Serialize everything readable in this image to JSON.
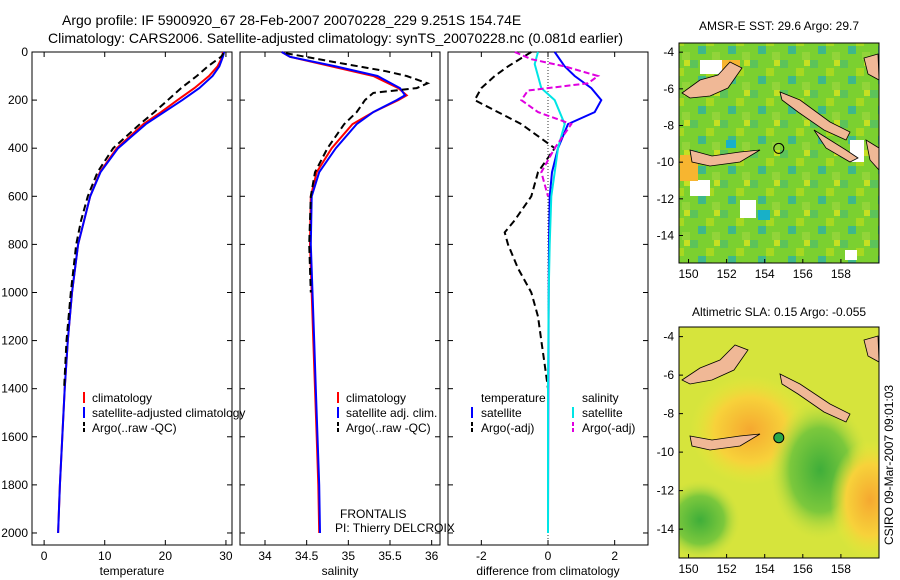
{
  "header": {
    "line1": "Argo profile: IF 5900920_67 28-Feb-2007 20070228_229 9.251S 154.74E",
    "line2": "Climatology: CARS2006. Satellite-adjusted climatology: synTS_20070228.nc (0.081d earlier)"
  },
  "colors": {
    "climatology": "#ff0000",
    "satellite": "#0000ff",
    "argo": "#000000",
    "sat_salinity": "#00e5e5",
    "argo_salinity": "#e000e0",
    "land": "#f0b896"
  },
  "chart_data": [
    {
      "type": "line",
      "id": "temperature-profile",
      "xlabel": "temperature",
      "ylabel": "",
      "xlim": [
        -2,
        31
      ],
      "ylim": [
        2050,
        0
      ],
      "xticks": [
        0,
        10,
        20,
        30
      ],
      "yticks": [
        0,
        200,
        400,
        600,
        800,
        1000,
        1200,
        1400,
        1600,
        1800,
        2000
      ],
      "series": [
        {
          "name": "climatology",
          "color": "#ff0000",
          "dash": "none",
          "depth": [
            0,
            20,
            60,
            100,
            150,
            200,
            250,
            300,
            400,
            500,
            600,
            800,
            1000,
            1200,
            1400,
            1600,
            1800,
            2000
          ],
          "values": [
            29.5,
            29.4,
            28.6,
            27.2,
            24.8,
            22.0,
            19.3,
            16.4,
            12.0,
            9.2,
            7.6,
            5.6,
            4.6,
            3.9,
            3.4,
            3.0,
            2.6,
            2.3
          ]
        },
        {
          "name": "satellite-adjusted climatology",
          "color": "#0000ff",
          "dash": "none",
          "depth": [
            0,
            20,
            60,
            100,
            150,
            200,
            250,
            300,
            400,
            500,
            600,
            800,
            1000,
            1200,
            1400,
            1600,
            1800,
            2000
          ],
          "values": [
            29.7,
            29.5,
            28.9,
            27.8,
            25.6,
            22.8,
            19.8,
            16.8,
            12.2,
            9.3,
            7.6,
            5.6,
            4.6,
            3.9,
            3.4,
            3.0,
            2.6,
            2.3
          ]
        },
        {
          "name": "Argo(..raw -QC)",
          "color": "#000000",
          "dash": "7,4",
          "depth": [
            5,
            20,
            60,
            100,
            150,
            200,
            250,
            300,
            400,
            500,
            600,
            700,
            800,
            1000,
            1200,
            1400
          ],
          "values": [
            29.6,
            29.2,
            27.0,
            25.2,
            22.6,
            20.4,
            18.2,
            15.8,
            11.4,
            8.8,
            7.2,
            6.1,
            5.3,
            4.4,
            3.7,
            3.3
          ]
        }
      ],
      "legend": [
        "climatology",
        "satellite-adjusted climatology",
        "Argo(..raw -QC)"
      ]
    },
    {
      "type": "line",
      "id": "salinity-profile",
      "xlabel": "salinity",
      "xlim": [
        33.7,
        36.1
      ],
      "ylim": [
        2050,
        0
      ],
      "xticks": [
        34,
        34.5,
        35,
        35.5,
        36
      ],
      "series": [
        {
          "name": "climatology",
          "color": "#ff0000",
          "dash": "none",
          "depth": [
            0,
            20,
            60,
            100,
            150,
            180,
            200,
            250,
            300,
            400,
            500,
            600,
            800,
            1000,
            1200,
            1400,
            1600,
            1800,
            2000
          ],
          "values": [
            34.2,
            34.3,
            34.8,
            35.3,
            35.6,
            35.7,
            35.6,
            35.3,
            35.05,
            34.8,
            34.62,
            34.55,
            34.54,
            34.56,
            34.58,
            34.6,
            34.62,
            34.64,
            34.65
          ]
        },
        {
          "name": "satellite adj. clim.",
          "color": "#0000ff",
          "dash": "none",
          "depth": [
            0,
            20,
            60,
            100,
            150,
            180,
            200,
            250,
            300,
            400,
            500,
            600,
            800,
            1000,
            1200,
            1400,
            1600,
            1800,
            2000
          ],
          "values": [
            34.2,
            34.3,
            34.85,
            35.35,
            35.62,
            35.68,
            35.58,
            35.3,
            35.1,
            34.85,
            34.65,
            34.56,
            34.55,
            34.57,
            34.59,
            34.61,
            34.63,
            34.65,
            34.66
          ]
        },
        {
          "name": "Argo(..raw -QC)",
          "color": "#000000",
          "dash": "7,4",
          "depth": [
            5,
            40,
            80,
            100,
            130,
            150,
            170,
            200,
            250,
            300,
            400,
            500,
            600,
            800,
            1000
          ],
          "values": [
            34.25,
            34.8,
            35.45,
            35.7,
            35.95,
            35.82,
            35.3,
            35.2,
            35.1,
            34.95,
            34.75,
            34.6,
            34.55,
            34.53,
            34.55
          ]
        }
      ],
      "legend": [
        "climatology",
        "satellite adj. clim.",
        "Argo(..raw -QC)"
      ],
      "annotation": [
        "FRONTALIS",
        "PI: Thierry DELCROIX"
      ]
    },
    {
      "type": "line",
      "id": "difference-profile",
      "xlabel": "difference from climatology",
      "xlim": [
        -3,
        3
      ],
      "ylim": [
        2050,
        0
      ],
      "xticks": [
        -2,
        0,
        2
      ],
      "series": [
        {
          "name": "temperature satellite",
          "color": "#0000ff",
          "dash": "none",
          "depth": [
            0,
            60,
            100,
            150,
            200,
            250,
            300,
            400,
            500,
            600,
            800,
            1000,
            1400,
            2000
          ],
          "values": [
            0.2,
            0.5,
            0.8,
            1.3,
            1.6,
            1.4,
            0.6,
            0.3,
            0.12,
            0.05,
            0.03,
            0.02,
            0.01,
            0.0
          ]
        },
        {
          "name": "temperature Argo(-adj)",
          "color": "#000000",
          "dash": "7,4",
          "depth": [
            0,
            60,
            100,
            150,
            200,
            250,
            300,
            400,
            500,
            600,
            700,
            750,
            800,
            900,
            1000,
            1100,
            1200,
            1300,
            1400
          ],
          "values": [
            -0.5,
            -1.2,
            -1.6,
            -2.0,
            -2.2,
            -1.5,
            -0.8,
            0.2,
            -0.3,
            -0.5,
            -1.0,
            -1.3,
            -1.2,
            -0.9,
            -0.5,
            -0.3,
            -0.2,
            -0.1,
            0.0
          ]
        },
        {
          "name": "salinity satellite",
          "color": "#00e5e5",
          "dash": "none",
          "depth": [
            0,
            50,
            100,
            150,
            200,
            300,
            400,
            500,
            600,
            800,
            1000,
            1400,
            2000
          ],
          "values": [
            -0.3,
            -0.4,
            -0.3,
            -0.2,
            0.2,
            0.5,
            0.3,
            0.2,
            0.1,
            0.05,
            0.02,
            0.0,
            0.0
          ]
        },
        {
          "name": "salinity Argo(-adj)",
          "color": "#e000e0",
          "dash": "6,3",
          "depth": [
            0,
            30,
            60,
            100,
            130,
            160,
            200,
            250,
            300,
            400,
            500,
            600
          ],
          "values": [
            -1.0,
            -0.5,
            0.5,
            1.5,
            1.2,
            -0.6,
            -0.8,
            -0.3,
            0.7,
            0.2,
            -0.2,
            0.0
          ]
        }
      ],
      "legend_left": [
        "temperature",
        "satellite",
        "Argo(-adj)"
      ],
      "legend_right": [
        "salinity",
        "satellite",
        "Argo(-adj)"
      ]
    },
    {
      "type": "heatmap",
      "id": "sst-map",
      "title": "AMSR-E SST: 29.6 Argo: 29.7",
      "xlim": [
        149.5,
        160
      ],
      "ylim": [
        -15.5,
        -3.5
      ],
      "xticks": [
        150,
        152,
        154,
        156,
        158
      ],
      "yticks": [
        -4,
        -6,
        -8,
        -10,
        -12,
        -14
      ],
      "marker": {
        "lon": 154.74,
        "lat": -9.251
      }
    },
    {
      "type": "heatmap",
      "id": "sla-map",
      "title": "Altimetric SLA: 0.15 Argo: -0.055",
      "xlim": [
        149.5,
        160
      ],
      "ylim": [
        -15.5,
        -3.5
      ],
      "xticks": [
        150,
        152,
        154,
        156,
        158
      ],
      "yticks": [
        -4,
        -6,
        -8,
        -10,
        -12,
        -14
      ],
      "marker": {
        "lon": 154.74,
        "lat": -9.251
      }
    }
  ],
  "footer": {
    "credit": "CSIRO 09-Mar-2007 09:01:03"
  }
}
